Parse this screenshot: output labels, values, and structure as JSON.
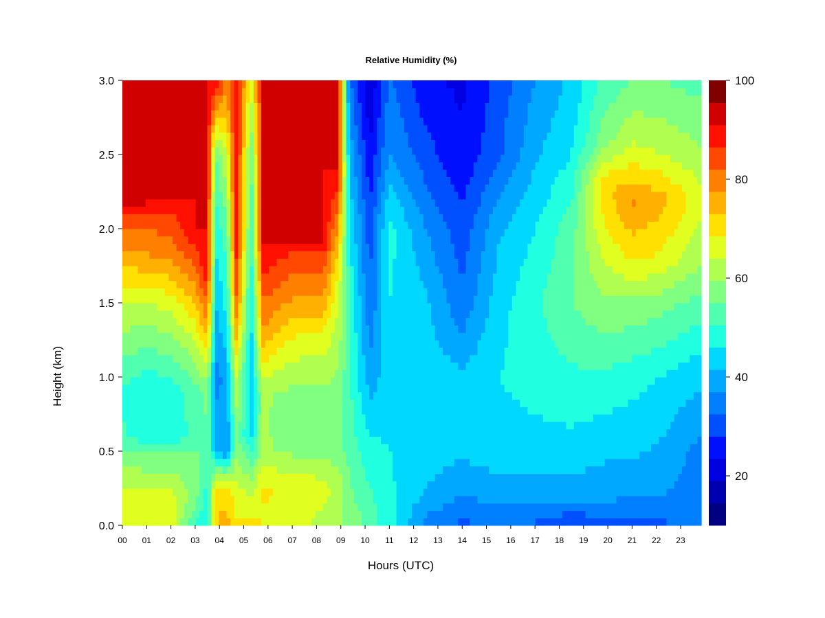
{
  "chart_data": {
    "type": "heatmap",
    "title": "Relative Humidity (%)",
    "xlabel": "Hours (UTC)",
    "ylabel": "Height (km)",
    "x_ticks": [
      "00",
      "01",
      "02",
      "03",
      "04",
      "05",
      "06",
      "07",
      "08",
      "09",
      "10",
      "11",
      "12",
      "13",
      "14",
      "15",
      "16",
      "17",
      "18",
      "19",
      "20",
      "21",
      "22",
      "23"
    ],
    "y_ticks": [
      "0.0",
      "0.5",
      "1.0",
      "1.5",
      "2.0",
      "2.5",
      "3.0"
    ],
    "xlim": [
      0,
      23.85
    ],
    "ylim": [
      0.0,
      3.0
    ],
    "colorbar": {
      "range": [
        10,
        100
      ],
      "step": 5,
      "tick_labels": [
        "20",
        "40",
        "60",
        "80",
        "100"
      ],
      "colors": [
        "#000080",
        "#0000B0",
        "#0000E0",
        "#0010FF",
        "#0050FF",
        "#0080FF",
        "#00A8FF",
        "#00D8FF",
        "#20FFE0",
        "#50FFB0",
        "#80FF80",
        "#B0FF50",
        "#E0FF20",
        "#FFE000",
        "#FFB000",
        "#FF8000",
        "#FF4800",
        "#FF1000",
        "#D00000",
        "#800000"
      ]
    },
    "profiles": [
      {
        "hour": 0.0,
        "rh": [
          [
            0.0,
            74
          ],
          [
            0.2,
            72
          ],
          [
            0.45,
            64
          ],
          [
            0.6,
            56
          ],
          [
            0.9,
            54
          ],
          [
            1.2,
            62
          ],
          [
            1.5,
            70
          ],
          [
            1.8,
            82
          ],
          [
            2.05,
            92
          ],
          [
            2.15,
            100
          ],
          [
            3.0,
            100
          ]
        ]
      },
      {
        "hour": 1.0,
        "rh": [
          [
            0.0,
            72
          ],
          [
            0.2,
            71
          ],
          [
            0.45,
            62
          ],
          [
            0.6,
            52
          ],
          [
            0.9,
            50
          ],
          [
            1.2,
            60
          ],
          [
            1.5,
            70
          ],
          [
            1.8,
            84
          ],
          [
            2.05,
            92
          ],
          [
            2.15,
            100
          ],
          [
            3.0,
            100
          ]
        ]
      },
      {
        "hour": 2.0,
        "rh": [
          [
            0.0,
            73
          ],
          [
            0.2,
            72
          ],
          [
            0.45,
            62
          ],
          [
            0.6,
            52
          ],
          [
            0.9,
            52
          ],
          [
            1.2,
            62
          ],
          [
            1.5,
            72
          ],
          [
            1.8,
            86
          ],
          [
            2.1,
            94
          ],
          [
            2.2,
            100
          ],
          [
            3.0,
            100
          ]
        ]
      },
      {
        "hour": 3.0,
        "rh": [
          [
            0.0,
            55
          ],
          [
            0.2,
            62
          ],
          [
            0.45,
            62
          ],
          [
            0.6,
            56
          ],
          [
            0.9,
            58
          ],
          [
            1.2,
            68
          ],
          [
            1.5,
            80
          ],
          [
            1.8,
            92
          ],
          [
            2.0,
            100
          ],
          [
            3.0,
            100
          ]
        ]
      },
      {
        "hour": 3.5,
        "rh": [
          [
            0.0,
            50
          ],
          [
            0.5,
            58
          ],
          [
            0.9,
            62
          ],
          [
            1.3,
            82
          ],
          [
            1.6,
            95
          ],
          [
            1.8,
            100
          ],
          [
            3.0,
            100
          ]
        ]
      },
      {
        "hour": 3.85,
        "rh": [
          [
            0.0,
            80
          ],
          [
            0.25,
            78
          ],
          [
            0.5,
            45
          ],
          [
            1.0,
            38
          ],
          [
            1.5,
            45
          ],
          [
            2.0,
            52
          ],
          [
            2.5,
            60
          ],
          [
            3.0,
            100
          ]
        ]
      },
      {
        "hour": 4.3,
        "rh": [
          [
            0.0,
            82
          ],
          [
            0.25,
            78
          ],
          [
            0.5,
            40
          ],
          [
            1.0,
            42
          ],
          [
            1.5,
            52
          ],
          [
            2.0,
            58
          ],
          [
            2.5,
            70
          ],
          [
            3.0,
            88
          ]
        ]
      },
      {
        "hour": 4.7,
        "rh": [
          [
            0.0,
            76
          ],
          [
            0.3,
            70
          ],
          [
            0.6,
            62
          ],
          [
            1.0,
            70
          ],
          [
            1.5,
            90
          ],
          [
            2.0,
            100
          ],
          [
            3.0,
            100
          ]
        ]
      },
      {
        "hour": 5.3,
        "rh": [
          [
            0.0,
            78
          ],
          [
            0.3,
            66
          ],
          [
            0.6,
            48
          ],
          [
            1.0,
            45
          ],
          [
            1.5,
            50
          ],
          [
            2.0,
            55
          ],
          [
            2.5,
            60
          ],
          [
            3.0,
            72
          ]
        ]
      },
      {
        "hour": 5.8,
        "rh": [
          [
            0.0,
            74
          ],
          [
            0.25,
            76
          ],
          [
            0.5,
            66
          ],
          [
            0.9,
            66
          ],
          [
            1.3,
            84
          ],
          [
            1.6,
            92
          ],
          [
            1.85,
            100
          ],
          [
            3.0,
            100
          ]
        ]
      },
      {
        "hour": 7.0,
        "rh": [
          [
            0.0,
            72
          ],
          [
            0.25,
            74
          ],
          [
            0.5,
            64
          ],
          [
            0.7,
            60
          ],
          [
            1.0,
            66
          ],
          [
            1.3,
            76
          ],
          [
            1.55,
            86
          ],
          [
            1.8,
            92
          ],
          [
            1.9,
            100
          ],
          [
            3.0,
            100
          ]
        ]
      },
      {
        "hour": 8.3,
        "rh": [
          [
            0.0,
            68
          ],
          [
            0.25,
            72
          ],
          [
            0.5,
            64
          ],
          [
            0.7,
            62
          ],
          [
            1.0,
            66
          ],
          [
            1.3,
            74
          ],
          [
            1.5,
            84
          ],
          [
            1.8,
            92
          ],
          [
            1.9,
            100
          ],
          [
            3.0,
            100
          ]
        ]
      },
      {
        "hour": 8.9,
        "rh": [
          [
            0.0,
            66
          ],
          [
            0.25,
            68
          ],
          [
            0.5,
            62
          ],
          [
            1.0,
            64
          ],
          [
            1.5,
            70
          ],
          [
            1.9,
            80
          ],
          [
            2.2,
            92
          ],
          [
            2.4,
            100
          ],
          [
            3.0,
            100
          ]
        ]
      },
      {
        "hour": 9.35,
        "rh": [
          [
            0.0,
            64
          ],
          [
            0.5,
            58
          ],
          [
            1.0,
            56
          ],
          [
            1.5,
            55
          ],
          [
            2.0,
            50
          ],
          [
            2.5,
            44
          ],
          [
            3.0,
            36
          ]
        ]
      },
      {
        "hour": 10.2,
        "rh": [
          [
            0.0,
            58
          ],
          [
            0.5,
            52
          ],
          [
            1.0,
            42
          ],
          [
            1.5,
            36
          ],
          [
            2.0,
            32
          ],
          [
            2.5,
            26
          ],
          [
            3.0,
            20
          ]
        ]
      },
      {
        "hour": 11.0,
        "rh": [
          [
            0.0,
            52
          ],
          [
            0.5,
            50
          ],
          [
            1.0,
            48
          ],
          [
            1.5,
            50
          ],
          [
            2.0,
            52
          ],
          [
            2.5,
            40
          ],
          [
            3.0,
            36
          ]
        ]
      },
      {
        "hour": 12.5,
        "rh": [
          [
            0.0,
            38
          ],
          [
            0.2,
            44
          ],
          [
            0.5,
            48
          ],
          [
            1.0,
            48
          ],
          [
            1.5,
            46
          ],
          [
            2.0,
            40
          ],
          [
            2.5,
            32
          ],
          [
            3.0,
            26
          ]
        ]
      },
      {
        "hour": 14.0,
        "rh": [
          [
            0.0,
            34
          ],
          [
            0.2,
            40
          ],
          [
            0.5,
            46
          ],
          [
            1.0,
            46
          ],
          [
            1.5,
            36
          ],
          [
            2.0,
            32
          ],
          [
            2.5,
            26
          ],
          [
            3.0,
            24
          ]
        ]
      },
      {
        "hour": 15.5,
        "rh": [
          [
            0.0,
            35
          ],
          [
            0.2,
            42
          ],
          [
            0.5,
            48
          ],
          [
            1.0,
            50
          ],
          [
            1.5,
            48
          ],
          [
            2.0,
            44
          ],
          [
            2.5,
            34
          ],
          [
            3.0,
            32
          ]
        ]
      },
      {
        "hour": 17.0,
        "rh": [
          [
            0.0,
            34
          ],
          [
            0.2,
            42
          ],
          [
            0.5,
            48
          ],
          [
            1.0,
            52
          ],
          [
            1.5,
            54
          ],
          [
            2.0,
            50
          ],
          [
            2.5,
            44
          ],
          [
            3.0,
            40
          ]
        ]
      },
      {
        "hour": 18.5,
        "rh": [
          [
            0.0,
            30
          ],
          [
            0.2,
            42
          ],
          [
            0.5,
            48
          ],
          [
            1.0,
            54
          ],
          [
            1.5,
            60
          ],
          [
            2.0,
            58
          ],
          [
            2.5,
            50
          ],
          [
            3.0,
            46
          ]
        ]
      },
      {
        "hour": 19.8,
        "rh": [
          [
            0.0,
            32
          ],
          [
            0.2,
            42
          ],
          [
            0.5,
            46
          ],
          [
            1.0,
            54
          ],
          [
            1.5,
            64
          ],
          [
            2.0,
            74
          ],
          [
            2.3,
            78
          ],
          [
            2.6,
            62
          ],
          [
            3.0,
            56
          ]
        ]
      },
      {
        "hour": 21.0,
        "rh": [
          [
            0.0,
            32
          ],
          [
            0.2,
            40
          ],
          [
            0.5,
            46
          ],
          [
            1.0,
            52
          ],
          [
            1.5,
            64
          ],
          [
            1.8,
            76
          ],
          [
            2.2,
            86
          ],
          [
            2.5,
            72
          ],
          [
            3.0,
            60
          ]
        ]
      },
      {
        "hour": 22.2,
        "rh": [
          [
            0.0,
            34
          ],
          [
            0.2,
            40
          ],
          [
            0.5,
            44
          ],
          [
            1.0,
            50
          ],
          [
            1.5,
            62
          ],
          [
            1.8,
            74
          ],
          [
            2.2,
            82
          ],
          [
            2.5,
            70
          ],
          [
            3.0,
            60
          ]
        ]
      },
      {
        "hour": 23.85,
        "rh": [
          [
            0.0,
            36
          ],
          [
            0.2,
            38
          ],
          [
            0.5,
            38
          ],
          [
            1.0,
            46
          ],
          [
            1.5,
            58
          ],
          [
            1.8,
            66
          ],
          [
            2.2,
            72
          ],
          [
            2.5,
            66
          ],
          [
            3.0,
            58
          ]
        ]
      }
    ]
  }
}
